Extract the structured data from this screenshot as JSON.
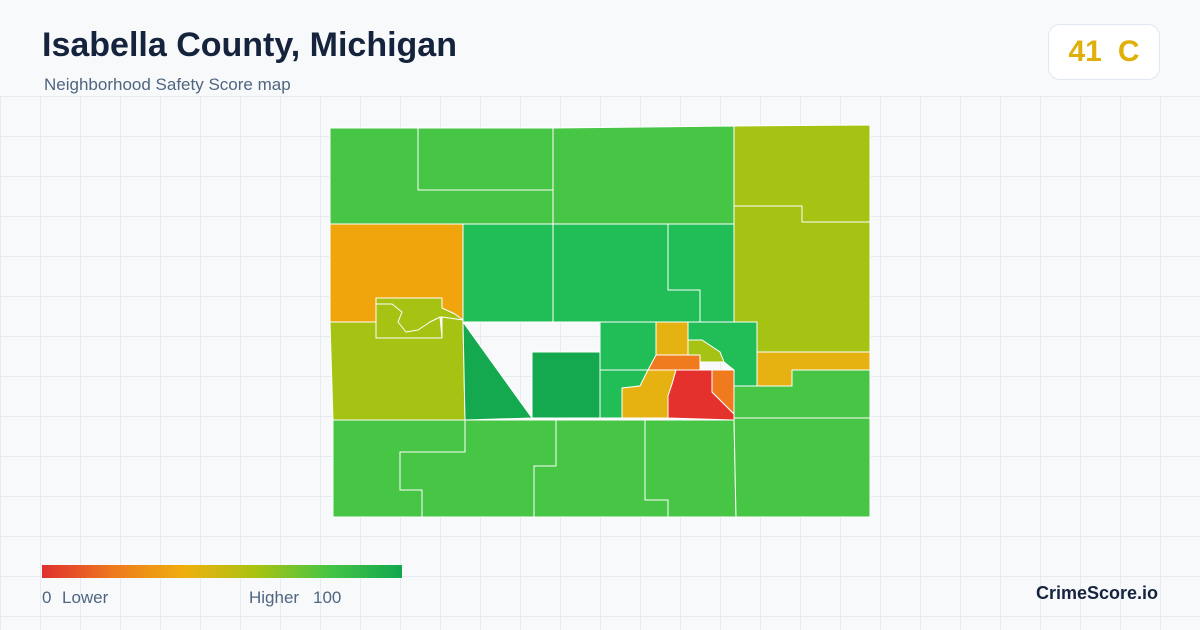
{
  "header": {
    "title": "Isabella County, Michigan",
    "subtitle": "Neighborhood Safety Score map"
  },
  "score": {
    "value": "41",
    "grade": "C",
    "color": "#e0b00a"
  },
  "legend": {
    "min_label": "0",
    "low_label": "Lower",
    "high_label": "Higher",
    "max_label": "100",
    "colors": [
      "#e03030",
      "#ee7a1e",
      "#eeb00e",
      "#a6c313",
      "#45c445",
      "#12a74e"
    ]
  },
  "brand": "CrimeScore.io",
  "palette": {
    "red": "#e5312c",
    "orange": "#f07a1e",
    "amber": "#f0a50d",
    "gold": "#e6b212",
    "yellow_green": "#a6c313",
    "green": "#47c544",
    "bright_green": "#21bd57",
    "dark_green": "#14a94f"
  }
}
